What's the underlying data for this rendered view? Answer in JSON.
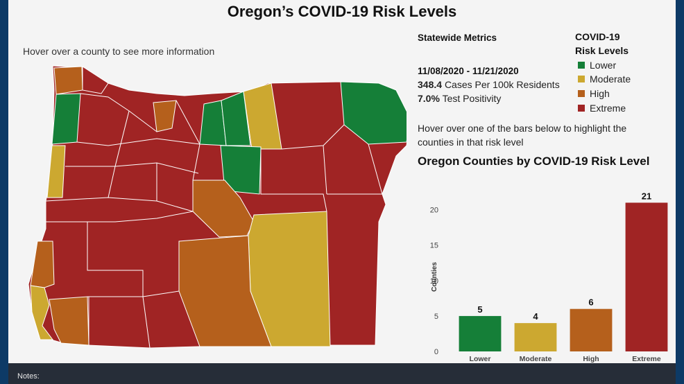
{
  "title": "Oregon’s COVID-19 Risk Levels",
  "map_hover_text": "Hover over a county to see more information",
  "metrics": {
    "title": "Statewide Metrics",
    "date_range": "11/08/2020 - 11/21/2020",
    "cases_value": "348.4",
    "cases_label": "Cases Per 100k Residents",
    "positivity_value": "7.0%",
    "positivity_label": "Test Positivity"
  },
  "legend": {
    "title_line1": "COVID-19",
    "title_line2": "Risk Levels",
    "items": [
      {
        "label": "Lower",
        "color": "#157f38"
      },
      {
        "label": "Moderate",
        "color": "#cca830"
      },
      {
        "label": "High",
        "color": "#b5601c"
      },
      {
        "label": "Extreme",
        "color": "#a02424"
      }
    ]
  },
  "bars_hover_text": "Hover over one of the bars below to highlight the counties in that risk level",
  "colors": {
    "lower": "#157f38",
    "moderate": "#cca830",
    "high": "#b5601c",
    "extreme": "#a02424"
  },
  "chart_data": {
    "type": "bar",
    "title": "Oregon Counties by COVID-19 Risk Level",
    "categories": [
      "Lower",
      "Moderate",
      "High",
      "Extreme"
    ],
    "values": [
      5,
      4,
      6,
      21
    ],
    "colors": [
      "#157f38",
      "#cca830",
      "#b5601c",
      "#a02424"
    ],
    "xlabel": "",
    "ylabel": "Counties",
    "ylim": [
      0,
      23
    ],
    "yticks": [
      0,
      5,
      10,
      15,
      20
    ],
    "grid": false,
    "data_labels": true
  },
  "footer": {
    "notes": "Notes:"
  }
}
